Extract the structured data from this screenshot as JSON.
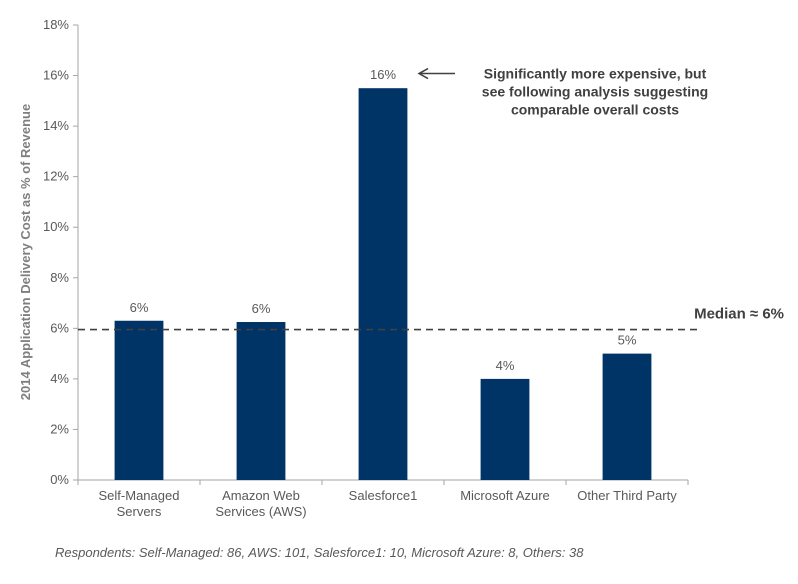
{
  "chart_data": {
    "type": "bar",
    "categories": [
      [
        "Self-Managed",
        "Servers"
      ],
      [
        "Amazon Web",
        "Services (AWS)"
      ],
      [
        "Salesforce1"
      ],
      [
        "Microsoft Azure"
      ],
      [
        "Other Third Party"
      ]
    ],
    "values": [
      6.3,
      6.25,
      15.5,
      4.0,
      5.0
    ],
    "data_labels": [
      "6%",
      "6%",
      "16%",
      "4%",
      "5%"
    ],
    "ylabel": "2014 Application Delivery Cost as % of Revenue",
    "ylim": [
      0,
      18
    ],
    "yticks": [
      "0%",
      "2%",
      "4%",
      "6%",
      "8%",
      "10%",
      "12%",
      "14%",
      "16%",
      "18%"
    ],
    "bar_color": "#003366",
    "median": {
      "value": 5.95,
      "label": "Median ≈ 6%"
    },
    "annotation": {
      "lines": [
        "Significantly more expensive, but",
        "see following analysis  suggesting",
        "comparable overall costs"
      ],
      "arrow": "←"
    }
  },
  "footnote": "Respondents: Self-Managed: 86, AWS: 101, Salesforce1: 10, Microsoft Azure: 8, Others: 38"
}
